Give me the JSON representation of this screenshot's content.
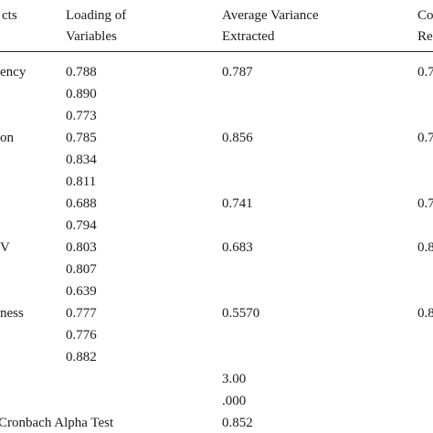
{
  "headers": {
    "constructs": "cts",
    "loading_line1": "Loading of",
    "loading_line2": "Variables",
    "ave_line1": "Average Variance",
    "ave_line2": "Extracted",
    "cr_line1": "Co",
    "cr_line2": "Re"
  },
  "rows": [
    {
      "construct": "ency",
      "loading": "0.788",
      "ave": "0.787",
      "cr": "0.7"
    },
    {
      "construct": "",
      "loading": "0.890",
      "ave": "",
      "cr": ""
    },
    {
      "construct": "",
      "loading": "0.773",
      "ave": "",
      "cr": ""
    },
    {
      "construct": "on",
      "loading": "0.785",
      "ave": "0.856",
      "cr": "0.7"
    },
    {
      "construct": "",
      "loading": "0.834",
      "ave": "",
      "cr": ""
    },
    {
      "construct": "",
      "loading": "0.811",
      "ave": "",
      "cr": ""
    },
    {
      "construct": "",
      "loading": "0.688",
      "ave": "0.741",
      "cr": "0.7"
    },
    {
      "construct": "",
      "loading": "0.794",
      "ave": "",
      "cr": ""
    },
    {
      "construct": "V",
      "loading": "0.803",
      "ave": "0.683",
      "cr": "0.8"
    },
    {
      "construct": "",
      "loading": "0.807",
      "ave": "",
      "cr": ""
    },
    {
      "construct": "",
      "loading": "0.639",
      "ave": "",
      "cr": ""
    },
    {
      "construct": "ness",
      "loading": "0.777",
      "ave": "0.5570",
      "cr": "0.8"
    },
    {
      "construct": "",
      "loading": "0.776",
      "ave": "",
      "cr": ""
    },
    {
      "construct": "",
      "loading": "0.882",
      "ave": "",
      "cr": ""
    },
    {
      "construct": "",
      "loading": "",
      "ave": "3.00",
      "cr": ""
    },
    {
      "construct": "",
      "loading": "",
      "ave": ".000",
      "cr": ""
    },
    {
      "construct": "Cronbach Alpha Test",
      "loading": "",
      "ave": "0.852",
      "cr": ""
    }
  ]
}
